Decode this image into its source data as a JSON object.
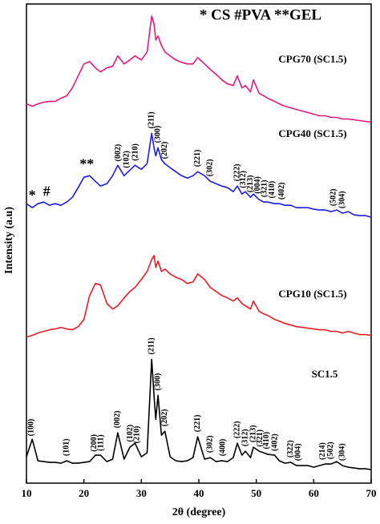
{
  "chart_data": {
    "type": "line",
    "title": "* CS #PVA **GEL",
    "x_label": "2θ (degree)",
    "y_label": "Intensity (a.u)",
    "xlim": [
      10,
      70
    ],
    "xticks": [
      10,
      20,
      30,
      40,
      50,
      60,
      70
    ],
    "ylim": [
      0,
      600
    ],
    "x": [
      10,
      11,
      12,
      13,
      14,
      15,
      16,
      17,
      18,
      19,
      20,
      21,
      22,
      22.9,
      24,
      25,
      25.9,
      27,
      28,
      28.9,
      30,
      31,
      31.8,
      32.2,
      32.5,
      32.9,
      33.5,
      34.1,
      35,
      36,
      37,
      38,
      39,
      39.8,
      41,
      42,
      43,
      44,
      45,
      46,
      46.7,
      47.5,
      48.1,
      49,
      49.5,
      50.5,
      51.3,
      52,
      53.2,
      54,
      55,
      56,
      57,
      58,
      59,
      60,
      61,
      62,
      63,
      64,
      65,
      66,
      67,
      68,
      69,
      70
    ],
    "series": [
      {
        "name": "CPG70 (SC1.5)",
        "color": "#e8197c",
        "values": [
          475,
          472,
          475,
          477,
          478,
          478,
          482,
          485,
          495,
          510,
          525,
          528,
          520,
          515,
          520,
          522,
          535,
          525,
          530,
          535,
          530,
          540,
          585,
          575,
          555,
          560,
          548,
          540,
          535,
          530,
          527,
          525,
          525,
          533,
          525,
          518,
          512,
          505,
          500,
          498,
          510,
          495,
          498,
          490,
          505,
          488,
          485,
          482,
          478,
          475,
          472,
          470,
          468,
          466,
          464,
          462,
          460,
          460,
          458,
          458,
          456,
          456,
          455,
          454,
          453,
          452
        ]
      },
      {
        "name": "CPG40 (SC1.5)",
        "color": "#1c1ce8",
        "values": [
          350,
          345,
          350,
          352,
          348,
          350,
          348,
          352,
          358,
          370,
          383,
          385,
          378,
          372,
          375,
          385,
          398,
          385,
          392,
          398,
          393,
          400,
          438,
          420,
          410,
          420,
          405,
          400,
          395,
          390,
          385,
          382,
          385,
          390,
          385,
          378,
          375,
          372,
          370,
          365,
          372,
          362,
          365,
          358,
          362,
          355,
          352,
          352,
          350,
          350,
          348,
          348,
          345,
          345,
          345,
          343,
          342,
          342,
          340,
          342,
          338,
          340,
          336,
          335,
          335,
          333
        ],
        "markers": [
          {
            "text": "*",
            "x": 11
          },
          {
            "text": "#",
            "x": 13.5
          },
          {
            "text": "**",
            "x": 20.5
          }
        ],
        "peak_labels": [
          {
            "label": "(002)",
            "x": 26
          },
          {
            "label": "(102)",
            "x": 27.5
          },
          {
            "label": "(210)",
            "x": 29
          },
          {
            "label": "(211)",
            "x": 31.8
          },
          {
            "label": "(300)",
            "x": 32.9
          },
          {
            "label": "(202)",
            "x": 34.1
          },
          {
            "label": "(221)",
            "x": 39.8
          },
          {
            "label": "(302)",
            "x": 42
          },
          {
            "label": "(222)",
            "x": 46.7
          },
          {
            "label": "(312)",
            "x": 47.8
          },
          {
            "label": "(213)",
            "x": 49
          },
          {
            "label": "(004)",
            "x": 50.3
          },
          {
            "label": "(321)",
            "x": 51.5
          },
          {
            "label": "(410)",
            "x": 52.8
          },
          {
            "label": "(402)",
            "x": 54.5
          },
          {
            "label": "(502)",
            "x": 63.5
          },
          {
            "label": "(304)",
            "x": 65
          }
        ]
      },
      {
        "name": "CPG10 (SC1.5)",
        "color": "#ec1c24",
        "values": [
          183,
          185,
          188,
          190,
          192,
          193,
          195,
          193,
          192,
          196,
          205,
          235,
          250,
          248,
          225,
          218,
          222,
          232,
          240,
          245,
          255,
          265,
          280,
          285,
          270,
          278,
          265,
          268,
          262,
          258,
          255,
          250,
          252,
          262,
          255,
          245,
          240,
          235,
          232,
          228,
          232,
          225,
          222,
          218,
          228,
          215,
          212,
          210,
          205,
          203,
          200,
          198,
          196,
          195,
          194,
          193,
          192,
          192,
          190,
          190,
          188,
          190,
          188,
          186,
          186,
          185
        ]
      },
      {
        "name": "SC1.5",
        "color": "#000000",
        "values": [
          33,
          55,
          28,
          27,
          26,
          26,
          25,
          28,
          25,
          25,
          26,
          27,
          35,
          35,
          27,
          30,
          63,
          30,
          45,
          50,
          33,
          38,
          155,
          110,
          80,
          110,
          60,
          65,
          33,
          28,
          27,
          28,
          32,
          58,
          30,
          32,
          27,
          28,
          27,
          32,
          50,
          35,
          40,
          32,
          45,
          40,
          38,
          36,
          35,
          28,
          25,
          26,
          22,
          22,
          22,
          20,
          22,
          24,
          24,
          27,
          22,
          20,
          19,
          18,
          18,
          17
        ],
        "peak_labels": [
          {
            "label": "(100)",
            "x": 10.9
          },
          {
            "label": "(101)",
            "x": 17
          },
          {
            "label": "(200)",
            "x": 21.8
          },
          {
            "label": "(111)",
            "x": 23
          },
          {
            "label": "(002)",
            "x": 25.9
          },
          {
            "label": "(102)",
            "x": 28.1
          },
          {
            "label": "(210)",
            "x": 29.3
          },
          {
            "label": "(211)",
            "x": 31.8
          },
          {
            "label": "(300)",
            "x": 32.9
          },
          {
            "label": "(202)",
            "x": 34.1
          },
          {
            "label": "(221)",
            "x": 39.8
          },
          {
            "label": "(302)",
            "x": 42
          },
          {
            "label": "(400)",
            "x": 44.2
          },
          {
            "label": "(222)",
            "x": 46.7
          },
          {
            "label": "(312)",
            "x": 48.1
          },
          {
            "label": "(213)",
            "x": 49.5
          },
          {
            "label": "(321)",
            "x": 50.7
          },
          {
            "label": "(410)",
            "x": 51.8
          },
          {
            "label": "(402)",
            "x": 53.3
          },
          {
            "label": "(322)",
            "x": 56
          },
          {
            "label": "(004)",
            "x": 57.3
          },
          {
            "label": "(214)",
            "x": 61.6
          },
          {
            "label": "(502)",
            "x": 63
          },
          {
            "label": "(304)",
            "x": 65
          }
        ]
      }
    ]
  }
}
